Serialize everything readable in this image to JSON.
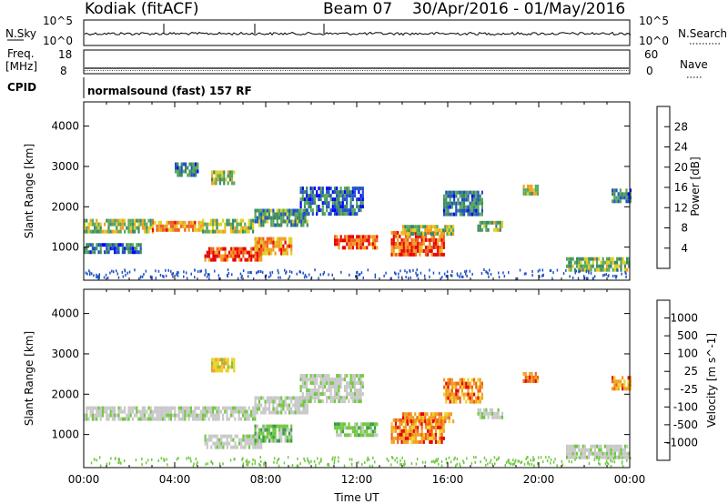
{
  "header": {
    "station": "Kodiak (fitACF)",
    "beam": "Beam 07",
    "dates": "30/Apr/2016 - 01/May/2016"
  },
  "chart_data": [
    {
      "type": "line",
      "panel": "noise",
      "left_labels": [
        "N.Sky"
      ],
      "right_labels": [
        "N.Search"
      ],
      "left_ticks": [
        "10^5",
        "10^0"
      ],
      "right_ticks": [
        "10^5",
        "10^0"
      ],
      "scale": "log"
    },
    {
      "type": "line",
      "panel": "freq-nave",
      "left_labels": [
        "Freq.",
        "[MHz]"
      ],
      "right_labels": [
        "Nave"
      ],
      "left_ticks": [
        "18",
        "8"
      ],
      "right_ticks": [
        "60",
        "0"
      ],
      "ylim_left": [
        8,
        18
      ],
      "ylim_right": [
        0,
        60
      ]
    },
    {
      "type": "table",
      "panel": "cpid",
      "label": "CPID",
      "value": "normalsound (fast) 157 RF"
    },
    {
      "type": "heatmap",
      "panel": "power",
      "ylabel": "Slant Range [km]",
      "yticks": [
        "1000",
        "2000",
        "3000",
        "4000"
      ],
      "ylim": [
        180,
        4600
      ],
      "xlim_hours": [
        0,
        24
      ],
      "colorbar": {
        "label": "Power [dB]",
        "ticks": [
          "4",
          "8",
          "12",
          "16",
          "20",
          "24",
          "28"
        ],
        "colors": [
          "#0000ff",
          "#2050c8",
          "#3c8a60",
          "#5aa85a",
          "#e0d020",
          "#f0a020",
          "#f06018",
          "#e80000"
        ]
      },
      "patches": [
        {
          "t0": 0.0,
          "t1": 3.0,
          "r0": 1350,
          "r1": 1700,
          "level": 0.5
        },
        {
          "t0": 3.0,
          "t1": 5.2,
          "r0": 1380,
          "r1": 1650,
          "level": 0.7
        },
        {
          "t0": 5.2,
          "t1": 7.5,
          "r0": 1400,
          "r1": 1700,
          "level": 0.5
        },
        {
          "t0": 7.5,
          "t1": 9.8,
          "r0": 1500,
          "r1": 1950,
          "level": 0.35
        },
        {
          "t0": 9.5,
          "t1": 12.3,
          "r0": 1850,
          "r1": 2500,
          "level": 0.25
        },
        {
          "t0": 5.3,
          "t1": 7.8,
          "r0": 650,
          "r1": 1000,
          "level": 0.85
        },
        {
          "t0": 7.5,
          "t1": 9.1,
          "r0": 800,
          "r1": 1250,
          "level": 0.7
        },
        {
          "t0": 5.6,
          "t1": 6.6,
          "r0": 2550,
          "r1": 2900,
          "level": 0.5
        },
        {
          "t0": 4.0,
          "t1": 5.0,
          "r0": 2800,
          "r1": 3100,
          "level": 0.3
        },
        {
          "t0": 11.0,
          "t1": 12.9,
          "r0": 1000,
          "r1": 1300,
          "level": 0.85
        },
        {
          "t0": 13.5,
          "t1": 15.8,
          "r0": 800,
          "r1": 1400,
          "level": 0.8
        },
        {
          "t0": 14.0,
          "t1": 16.2,
          "r0": 1300,
          "r1": 1550,
          "level": 0.5
        },
        {
          "t0": 15.8,
          "t1": 17.5,
          "r0": 1850,
          "r1": 2400,
          "level": 0.3
        },
        {
          "t0": 17.3,
          "t1": 18.4,
          "r0": 1400,
          "r1": 1650,
          "level": 0.45
        },
        {
          "t0": 19.3,
          "t1": 20.0,
          "r0": 2350,
          "r1": 2550,
          "level": 0.55
        },
        {
          "t0": 21.2,
          "t1": 24.0,
          "r0": 400,
          "r1": 750,
          "level": 0.45
        },
        {
          "t0": 23.2,
          "t1": 24.0,
          "r0": 2100,
          "r1": 2450,
          "level": 0.3
        },
        {
          "t0": 0.0,
          "t1": 2.5,
          "r0": 900,
          "r1": 1100,
          "level": 0.25
        }
      ]
    },
    {
      "type": "heatmap",
      "panel": "velocity",
      "ylabel": "Slant Range [km]",
      "yticks": [
        "1000",
        "2000",
        "3000",
        "4000"
      ],
      "ylim": [
        180,
        4600
      ],
      "xlim_hours": [
        0,
        24
      ],
      "xticks": [
        "00:00",
        "04:00",
        "08:00",
        "12:00",
        "16:00",
        "20:00",
        "00:00"
      ],
      "xlabel": "Time UT",
      "colorbar": {
        "label": "Velocity [m s^-1]",
        "ticks": [
          "1000",
          "500",
          "100",
          "25",
          "-25",
          "-100",
          "-500",
          "-1000"
        ],
        "colors": [
          "#1e3ca8",
          "#3a78c8",
          "#3a9a48",
          "#70c840",
          "#c8c8c8",
          "#f0d020",
          "#f0a020",
          "#f06018",
          "#e80000"
        ]
      },
      "patches": [
        {
          "t0": 0.0,
          "t1": 3.0,
          "r0": 1350,
          "r1": 1700,
          "vel": "gray"
        },
        {
          "t0": 3.0,
          "t1": 7.5,
          "r0": 1380,
          "r1": 1700,
          "vel": "gray"
        },
        {
          "t0": 7.5,
          "t1": 9.8,
          "r0": 1500,
          "r1": 1950,
          "vel": "gray"
        },
        {
          "t0": 9.5,
          "t1": 12.3,
          "r0": 1850,
          "r1": 2500,
          "vel": "gray"
        },
        {
          "t0": 5.3,
          "t1": 7.8,
          "r0": 650,
          "r1": 1000,
          "vel": "gray"
        },
        {
          "t0": 7.5,
          "t1": 9.1,
          "r0": 800,
          "r1": 1250,
          "vel": "green"
        },
        {
          "t0": 5.6,
          "t1": 6.6,
          "r0": 2550,
          "r1": 2900,
          "vel": "yellow"
        },
        {
          "t0": 11.0,
          "t1": 12.9,
          "r0": 1000,
          "r1": 1300,
          "vel": "green"
        },
        {
          "t0": 13.5,
          "t1": 15.8,
          "r0": 800,
          "r1": 1400,
          "vel": "orange"
        },
        {
          "t0": 14.0,
          "t1": 16.2,
          "r0": 1300,
          "r1": 1550,
          "vel": "orange"
        },
        {
          "t0": 15.8,
          "t1": 17.5,
          "r0": 1850,
          "r1": 2400,
          "vel": "orange"
        },
        {
          "t0": 17.3,
          "t1": 18.4,
          "r0": 1400,
          "r1": 1650,
          "vel": "gray"
        },
        {
          "t0": 19.3,
          "t1": 20.0,
          "r0": 2350,
          "r1": 2550,
          "vel": "orange"
        },
        {
          "t0": 21.2,
          "t1": 24.0,
          "r0": 400,
          "r1": 750,
          "vel": "gray"
        },
        {
          "t0": 23.2,
          "t1": 24.0,
          "r0": 2100,
          "r1": 2450,
          "vel": "orange"
        }
      ]
    }
  ]
}
